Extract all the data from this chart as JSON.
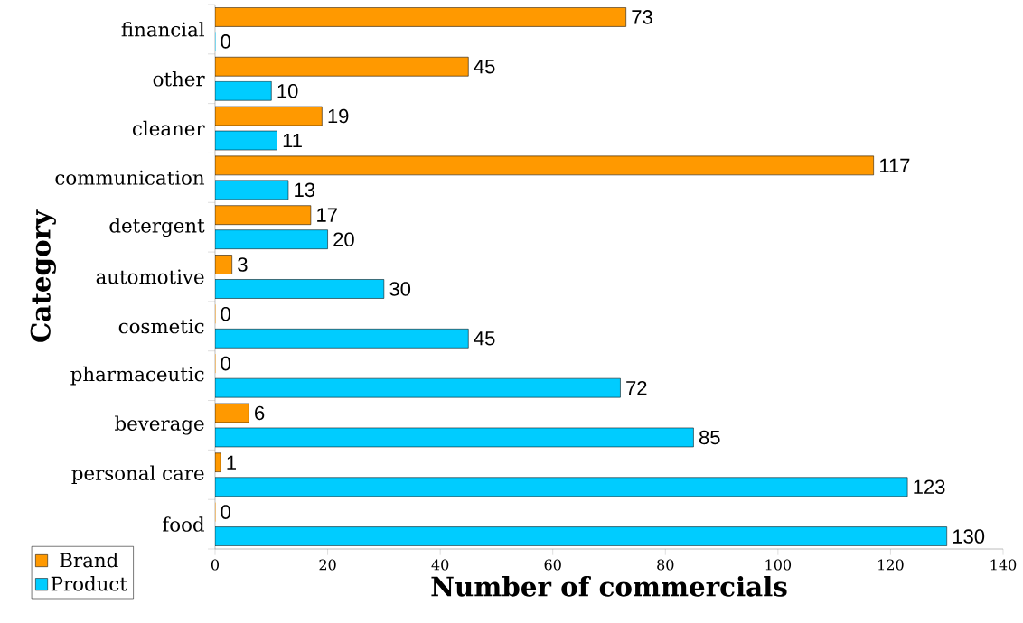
{
  "chart_data": {
    "type": "bar",
    "orientation": "horizontal",
    "xlabel": "Number of commercials",
    "ylabel": "Category",
    "categories": [
      "financial",
      "other",
      "cleaner",
      "communication",
      "detergent",
      "automotive",
      "cosmetic",
      "pharmaceutic",
      "beverage",
      "personal care",
      "food"
    ],
    "series": [
      {
        "name": "Brand",
        "color": "#ff9900",
        "values": [
          73,
          45,
          19,
          117,
          17,
          3,
          0,
          0,
          6,
          1,
          0
        ]
      },
      {
        "name": "Product",
        "color": "#00ccff",
        "values": [
          0,
          10,
          11,
          13,
          20,
          30,
          45,
          72,
          85,
          123,
          130
        ]
      }
    ],
    "xlim": [
      0,
      140
    ],
    "xticks": [
      0,
      20,
      40,
      60,
      80,
      100,
      120,
      140
    ],
    "data_labels": true,
    "grid": false,
    "legend": "bottom left"
  }
}
